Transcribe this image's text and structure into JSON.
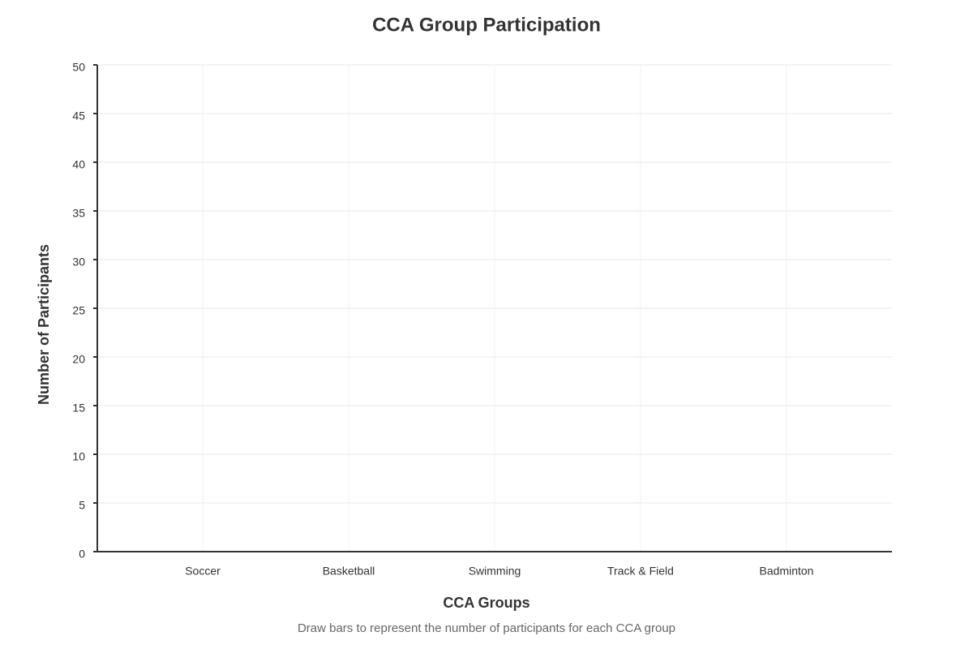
{
  "chart_data": {
    "type": "bar",
    "title": "CCA Group Participation",
    "x_label": "CCA Groups",
    "y_label": "Number of Participants",
    "instruction": "Draw bars to represent the number of participants for each CCA group",
    "categories": [
      "Soccer",
      "Basketball",
      "Swimming",
      "Track & Field",
      "Badminton"
    ],
    "color": "#4472c4",
    "ylim": [
      0,
      50
    ],
    "yticks": [
      0,
      5,
      10,
      15,
      20,
      25,
      30,
      35,
      40,
      45,
      50
    ],
    "grid": true
  }
}
